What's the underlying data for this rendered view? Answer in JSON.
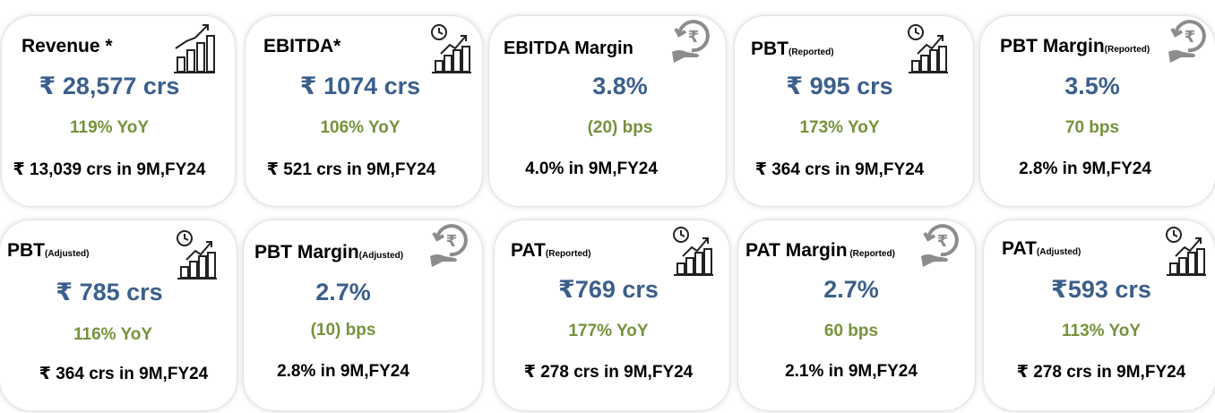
{
  "cards": [
    {
      "title": "Revenue *",
      "title_sub": "",
      "value": "₹ 28,577 crs",
      "change": "119% YoY",
      "prior": "₹ 13,039 crs in 9M,FY24",
      "icon": "bar-chart-growth-icon"
    },
    {
      "title": "EBITDA*",
      "title_sub": "",
      "value": "₹ 1074 crs",
      "change": "106% YoY",
      "prior": "₹ 521 crs in 9M,FY24",
      "icon": "clock-growth-chart-icon"
    },
    {
      "title": "EBITDA Margin",
      "title_sub": "",
      "value": "3.8%",
      "change": "(20) bps",
      "prior": "4.0% in 9M,FY24",
      "icon": "rupee-hand-icon"
    },
    {
      "title": "PBT",
      "title_sub": "(Reported)",
      "value": "₹ 995 crs",
      "change": "173% YoY",
      "prior": "₹ 364 crs in 9M,FY24",
      "icon": "clock-growth-chart-icon"
    },
    {
      "title": "PBT Margin",
      "title_sub": "(Reported)",
      "value": "3.5%",
      "change": "70 bps",
      "prior": "2.8% in 9M,FY24",
      "icon": "rupee-hand-icon"
    },
    {
      "title": "PBT",
      "title_sub": "(Adjusted)",
      "value": "₹ 785 crs",
      "change": "116% YoY",
      "prior": "₹ 364 crs in 9M,FY24",
      "icon": "clock-growth-chart-icon"
    },
    {
      "title": "PBT Margin",
      "title_sub": "(Adjusted)",
      "value": "2.7%",
      "change": "(10) bps",
      "prior": "2.8% in 9M,FY24",
      "icon": "rupee-hand-icon"
    },
    {
      "title": "PAT",
      "title_sub": "(Reported)",
      "value": "₹769 crs",
      "change": "177% YoY",
      "prior": "₹ 278 crs in 9M,FY24",
      "icon": "clock-growth-chart-icon"
    },
    {
      "title": "PAT Margin",
      "title_sub": " (Reported)",
      "value": "2.7%",
      "change": "60 bps",
      "prior": "2.1% in 9M,FY24",
      "icon": "rupee-hand-icon"
    },
    {
      "title": "PAT",
      "title_sub": "(Adjusted)",
      "value": "₹593 crs",
      "change": "113% YoY",
      "prior": "₹ 278 crs in 9M,FY24",
      "icon": "clock-growth-chart-icon"
    }
  ],
  "colors": {
    "value": "#3b5f8c",
    "change": "#76923c",
    "icon_rupee": "#8c8c8c",
    "icon_chart": "#222222"
  }
}
